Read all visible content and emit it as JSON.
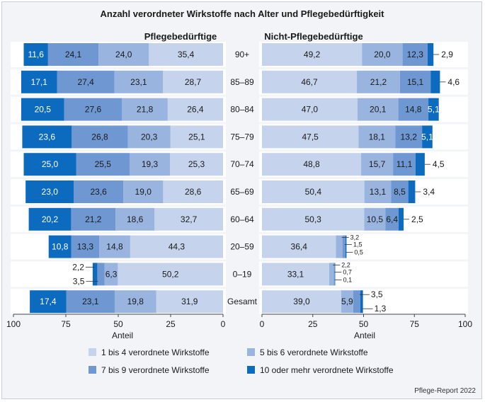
{
  "chart_data": {
    "type": "bar",
    "title": "Anzahl verordneter Wirkstoffe nach Alter und Pflegebedürftigkeit",
    "categories": [
      "90+",
      "85–89",
      "80–84",
      "75–79",
      "70–74",
      "65–69",
      "60–64",
      "20–59",
      "0–19",
      "Gesamt"
    ],
    "legend": [
      {
        "name": "1 bis 4 verordnete Wirkstoffe",
        "color": "#c5d4ec"
      },
      {
        "name": "5 bis 6 verordnete Wirkstoffe",
        "color": "#99b5df"
      },
      {
        "name": "7 bis 9 verordnete Wirkstoffe",
        "color": "#6f98d2"
      },
      {
        "name": "10 oder mehr verordnete Wirkstoffe",
        "color": "#0c6bbf"
      }
    ],
    "panels": [
      {
        "title": "Pflegebedürftige",
        "xlabel": "Anteil",
        "xlim": [
          100,
          0
        ],
        "ticks": [
          "100",
          "75",
          "50",
          "25",
          "0"
        ],
        "series": [
          {
            "name": "1 bis 4 verordnete Wirkstoffe",
            "values": [
              35.4,
              28.7,
              26.4,
              25.1,
              25.3,
              28.6,
              32.7,
              44.3,
              50.2,
              31.9
            ],
            "labels": [
              "35,4",
              "28,7",
              "26,4",
              "25,1",
              "25,3",
              "28,6",
              "32,7",
              "44,3",
              "50,2",
              "31,9"
            ]
          },
          {
            "name": "5 bis 6 verordnete Wirkstoffe",
            "values": [
              24.0,
              23.1,
              21.8,
              20.3,
              19.3,
              19.0,
              18.6,
              14.8,
              6.3,
              19.8
            ],
            "labels": [
              "24,0",
              "23,1",
              "21,8",
              "20,3",
              "19,3",
              "19,0",
              "18,6",
              "14,8",
              "6,3",
              "19,8"
            ]
          },
          {
            "name": "7 bis 9 verordnete Wirkstoffe",
            "values": [
              24.1,
              27.4,
              27.6,
              26.8,
              25.5,
              23.6,
              21.2,
              13.3,
              3.5,
              23.1
            ],
            "labels": [
              "24,1",
              "27,4",
              "27,6",
              "26,8",
              "25,5",
              "23,6",
              "21,2",
              "13,3",
              "3,5",
              "23,1"
            ]
          },
          {
            "name": "10 oder mehr verordnete Wirkstoffe",
            "values": [
              11.6,
              17.1,
              20.5,
              23.6,
              25.0,
              23.0,
              20.2,
              10.8,
              2.2,
              17.4
            ],
            "labels": [
              "11,6",
              "17,1",
              "20,5",
              "23,6",
              "25,0",
              "23,0",
              "20,2",
              "10,8",
              "2,2",
              "17,4"
            ]
          }
        ]
      },
      {
        "title": "Nicht-Pflegebedürftige",
        "xlabel": "Anteil",
        "xlim": [
          0,
          100
        ],
        "ticks": [
          "0",
          "25",
          "50",
          "75",
          "100"
        ],
        "series": [
          {
            "name": "1 bis 4 verordnete Wirkstoffe",
            "values": [
              49.2,
              46.7,
              47.0,
              47.5,
              48.8,
              50.4,
              50.3,
              36.4,
              33.1,
              39.0
            ],
            "labels": [
              "49,2",
              "46,7",
              "47,0",
              "47,5",
              "48,8",
              "50,4",
              "50,3",
              "36,4",
              "33,1",
              "39,0"
            ]
          },
          {
            "name": "5 bis 6 verordnete Wirkstoffe",
            "values": [
              20.0,
              21.2,
              20.1,
              18.1,
              15.7,
              13.1,
              10.5,
              3.2,
              2.2,
              5.9
            ],
            "labels": [
              "20,0",
              "21,2",
              "20,1",
              "18,1",
              "15,7",
              "13,1",
              "10,5",
              "3,2",
              "2,2",
              "5,9"
            ]
          },
          {
            "name": "7 bis 9 verordnete Wirkstoffe",
            "values": [
              12.3,
              15.1,
              14.8,
              13.2,
              11.1,
              8.5,
              6.4,
              1.5,
              0.7,
              3.5
            ],
            "labels": [
              "12,3",
              "15,1",
              "14,8",
              "13,2",
              "11,1",
              "8,5",
              "6,4",
              "1,5",
              "0,7",
              "3,5"
            ]
          },
          {
            "name": "10 oder mehr verordnete Wirkstoffe",
            "values": [
              2.9,
              4.6,
              5.1,
              5.1,
              4.5,
              3.4,
              2.5,
              0.5,
              0.1,
              1.3
            ],
            "labels": [
              "2,9",
              "4,6",
              "5,1",
              "5,1",
              "4,5",
              "3,4",
              "2,5",
              "0,5",
              "0,1",
              "1,3"
            ]
          }
        ]
      }
    ],
    "source": "Pflege-Report 2022"
  }
}
